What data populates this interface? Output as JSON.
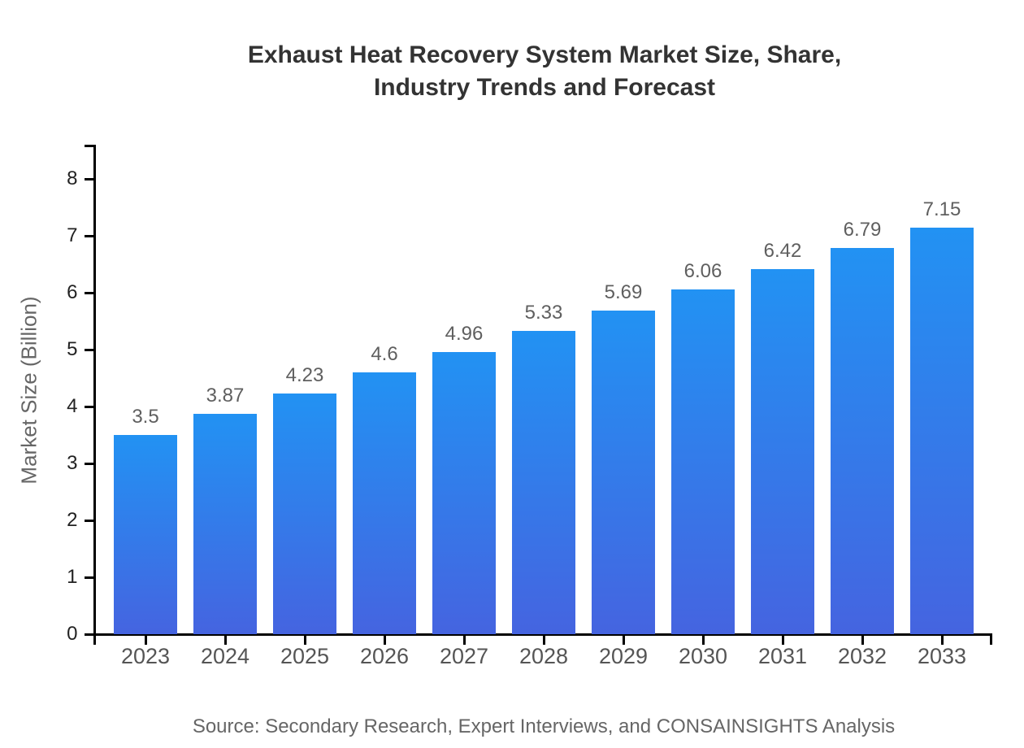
{
  "chart_data": {
    "type": "bar",
    "title": "Exhaust Heat Recovery System Market Size, Share, Industry Trends and Forecast",
    "title_lines": [
      "Exhaust Heat Recovery System Market Size, Share,",
      "Industry Trends and Forecast"
    ],
    "xlabel": "",
    "ylabel": "Market Size (Billion)",
    "categories": [
      "2023",
      "2024",
      "2025",
      "2026",
      "2027",
      "2028",
      "2029",
      "2030",
      "2031",
      "2032",
      "2033"
    ],
    "values": [
      3.5,
      3.87,
      4.23,
      4.6,
      4.96,
      5.33,
      5.69,
      6.06,
      6.42,
      6.79,
      7.15
    ],
    "value_labels": [
      "3.5",
      "3.87",
      "4.23",
      "4.6",
      "4.96",
      "5.33",
      "5.69",
      "6.06",
      "6.42",
      "6.79",
      "7.15"
    ],
    "ylim": [
      0,
      8
    ],
    "y_ticks": [
      0,
      1,
      2,
      3,
      4,
      5,
      6,
      7,
      8
    ],
    "grid": false,
    "legend": false,
    "colors": {
      "bar_gradient_top": "#2292f3",
      "bar_gradient_bottom": "#4564e0",
      "axis": "#000000",
      "title_text": "#333333",
      "tick_text": "#555555",
      "value_text": "#5f5f5f",
      "background": "#ffffff"
    },
    "source": "Source: Secondary Research, Expert Interviews, and CONSAINSIGHTS Analysis"
  }
}
